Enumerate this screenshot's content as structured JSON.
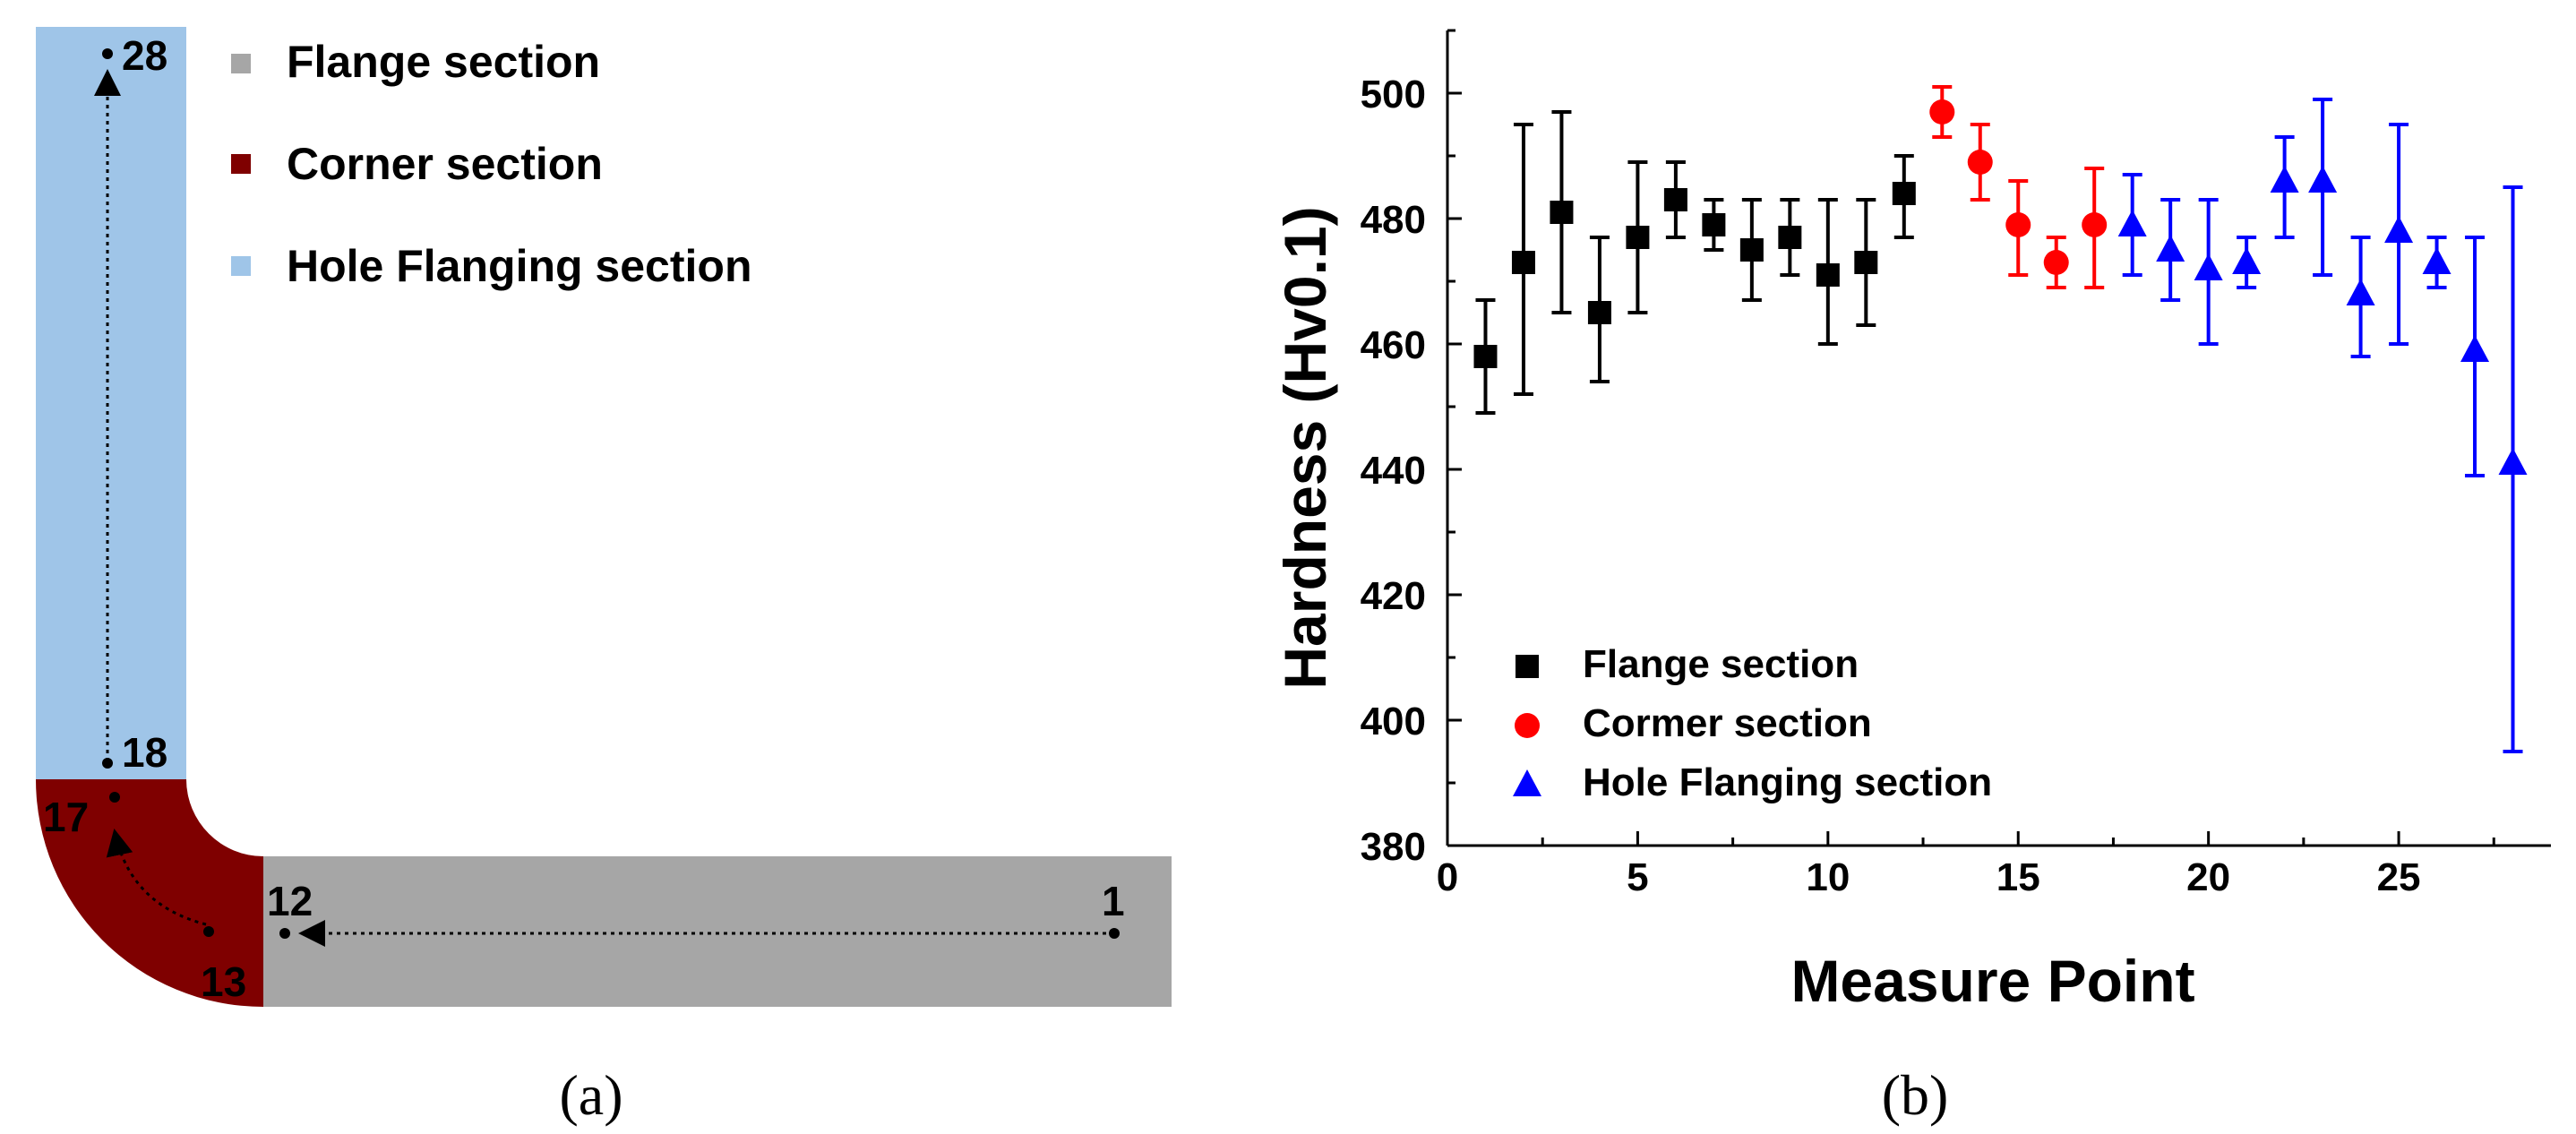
{
  "panel_a": {
    "caption": "(a)",
    "legend": [
      {
        "label": "Flange section",
        "color": "#a6a6a6"
      },
      {
        "label": "Corner section",
        "color": "#7f0000"
      },
      {
        "label": "Hole Flanging section",
        "color": "#9fc5e8"
      }
    ],
    "point_labels": {
      "p1": "1",
      "p12": "12",
      "p13": "13",
      "p17": "17",
      "p18": "18",
      "p28": "28"
    },
    "colors": {
      "flange": "#a6a6a6",
      "corner": "#7f0000",
      "hole": "#9fc5e8"
    }
  },
  "panel_b": {
    "caption": "(b)"
  },
  "chart_data": {
    "type": "scatter",
    "xlabel": "Measure Point",
    "ylabel": "Hardness (Hv0.1)",
    "xlim": [
      0,
      29
    ],
    "ylim": [
      380,
      510
    ],
    "xticks": [
      0,
      5,
      10,
      15,
      20,
      25
    ],
    "yticks": [
      380,
      400,
      420,
      440,
      460,
      480,
      500
    ],
    "legend_position": "bottom-left",
    "series": [
      {
        "name": "Flange section",
        "marker": "square",
        "color": "#000000",
        "x": [
          1,
          2,
          3,
          4,
          5,
          6,
          7,
          8,
          9,
          10,
          11,
          12
        ],
        "y": [
          458,
          473,
          481,
          465,
          477,
          483,
          479,
          475,
          477,
          471,
          473,
          484
        ],
        "err_low": [
          449,
          452,
          465,
          454,
          465,
          477,
          475,
          467,
          471,
          460,
          463,
          477
        ],
        "err_high": [
          467,
          495,
          497,
          477,
          489,
          489,
          483,
          483,
          483,
          483,
          483,
          490
        ]
      },
      {
        "name": "Cormer section",
        "marker": "circle",
        "color": "#ff0000",
        "x": [
          13,
          14,
          15,
          16,
          17
        ],
        "y": [
          497,
          489,
          479,
          473,
          479
        ],
        "err_low": [
          493,
          483,
          471,
          469,
          469
        ],
        "err_high": [
          501,
          495,
          486,
          477,
          488
        ]
      },
      {
        "name": "Hole Flanging section",
        "marker": "triangle",
        "color": "#0000ff",
        "x": [
          18,
          19,
          20,
          21,
          22,
          23,
          24,
          25,
          26,
          27,
          28
        ],
        "y": [
          479,
          475,
          472,
          473,
          486,
          486,
          468,
          478,
          473,
          459,
          441
        ],
        "err_low": [
          471,
          467,
          460,
          469,
          477,
          471,
          458,
          460,
          469,
          439,
          395
        ],
        "err_high": [
          487,
          483,
          483,
          477,
          493,
          499,
          477,
          495,
          477,
          477,
          485
        ]
      }
    ]
  }
}
